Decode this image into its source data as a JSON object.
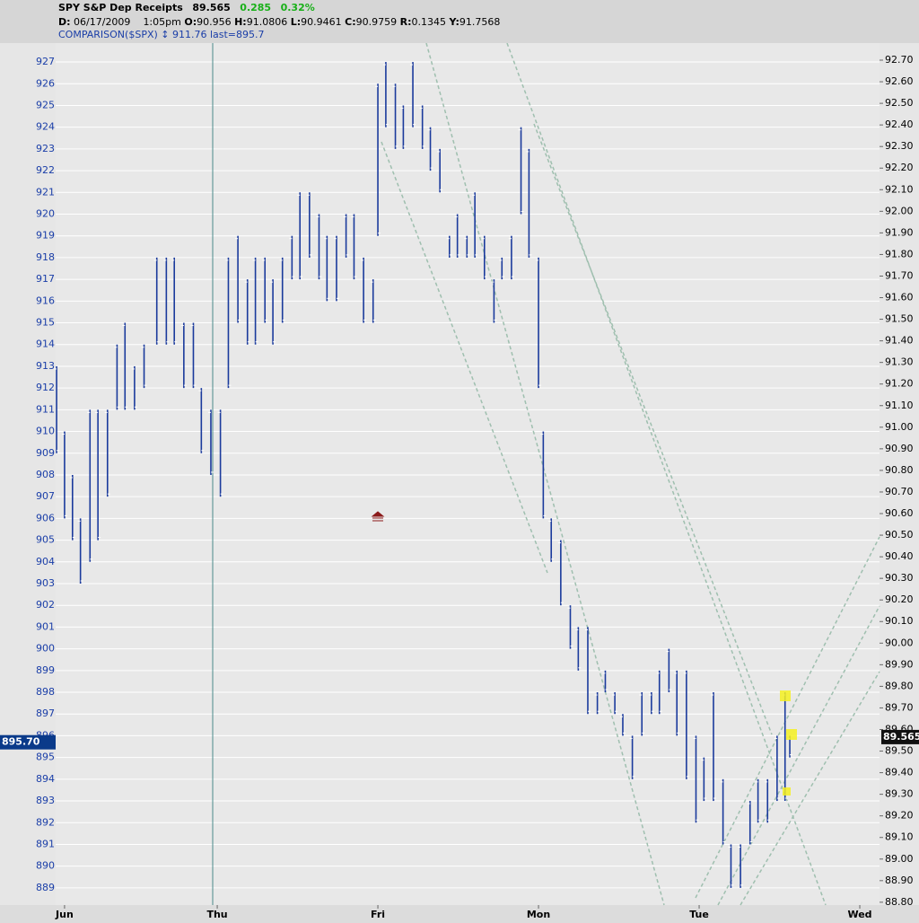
{
  "header": {
    "symbol": "SPY S&P Dep Receipts",
    "last": "89.565",
    "change": "0.285",
    "change_pct": "0.32%",
    "date_label": "D:",
    "date": "06/17/2009",
    "time": "1:05pm",
    "open_label": "O:",
    "open": "90.956",
    "high_label": "H:",
    "high": "91.0806",
    "low_label": "L:",
    "low": "90.9461",
    "close_label": "C:",
    "close": "90.9759",
    "range_label": "R:",
    "range": "0.1345",
    "y_label": "Y:",
    "y": "91.7568",
    "comparison": "COMPARISON($SPX) ↕ 911.76 last=895.7"
  },
  "chart_data": {
    "type": "hilo",
    "color": "#1a3a9c",
    "grid": true,
    "x": [
      -0.05,
      0,
      0.05,
      0.1,
      0.16,
      0.21,
      0.27,
      0.33,
      0.38,
      0.44,
      0.5,
      0.58,
      0.64,
      0.69,
      0.75,
      0.81,
      0.86,
      0.92,
      0.98,
      1.03,
      1.09,
      1.15,
      1.2,
      1.26,
      1.31,
      1.37,
      1.43,
      1.48,
      1.54,
      1.6,
      1.65,
      1.71,
      1.77,
      1.82,
      1.88,
      1.94,
      1.97,
      2.02,
      2.08,
      2.13,
      2.19,
      2.25,
      2.3,
      2.36,
      2.42,
      2.47,
      2.53,
      2.58,
      2.64,
      2.7,
      2.75,
      2.81,
      2.87,
      2.92,
      2.98,
      3.01,
      3.06,
      3.12,
      3.18,
      3.23,
      3.29,
      3.35,
      3.4,
      3.46,
      3.51,
      3.57,
      3.63,
      3.69,
      3.74,
      3.8,
      3.85,
      3.91,
      3.97,
      4.02,
      4.08,
      4.14,
      4.19,
      4.25,
      4.31,
      4.36,
      4.42,
      4.48,
      4.53,
      4.56
    ],
    "high": [
      913,
      910,
      908,
      906,
      911,
      911,
      911,
      914,
      915,
      913,
      914,
      918,
      918,
      918,
      915,
      915,
      912,
      911,
      911,
      918,
      919,
      917,
      918,
      918,
      917,
      918,
      919,
      921,
      921,
      920,
      919,
      919,
      920,
      920,
      918,
      917,
      926,
      927,
      926,
      925,
      927,
      925,
      924,
      923,
      919,
      920,
      919,
      921,
      919,
      917,
      918,
      919,
      924,
      923,
      918,
      910,
      906,
      905,
      902,
      901,
      901,
      898,
      899,
      898,
      897,
      896,
      898,
      898,
      899,
      900,
      899,
      899,
      896,
      895,
      898,
      894,
      891,
      891,
      893,
      894,
      894,
      896,
      898,
      896
    ],
    "low": [
      909,
      906,
      905,
      903,
      904,
      905,
      907,
      911,
      911,
      911,
      912,
      914,
      914,
      914,
      912,
      912,
      909,
      908,
      907,
      912,
      915,
      914,
      914,
      915,
      914,
      915,
      917,
      917,
      918,
      917,
      916,
      916,
      918,
      917,
      915,
      915,
      919,
      924,
      923,
      923,
      924,
      923,
      922,
      921,
      918,
      918,
      918,
      918,
      917,
      915,
      917,
      917,
      920,
      918,
      912,
      906,
      904,
      902,
      900,
      899,
      897,
      897,
      898,
      897,
      896,
      894,
      896,
      897,
      897,
      898,
      896,
      894,
      892,
      893,
      893,
      891,
      889,
      889,
      891,
      892,
      892,
      893,
      893,
      895
    ],
    "ylim": [
      888.21,
      927.87
    ],
    "yticks": [
      889,
      890,
      891,
      892,
      893,
      894,
      895,
      896,
      897,
      898,
      899,
      900,
      901,
      902,
      903,
      904,
      905,
      906,
      907,
      908,
      909,
      910,
      911,
      912,
      913,
      914,
      915,
      916,
      917,
      918,
      919,
      920,
      921,
      922,
      923,
      924,
      925,
      926,
      927
    ],
    "y2lim": [
      88.787,
      92.779
    ],
    "y2ticks": [
      {
        "value": 88.8,
        "label": "88.80"
      },
      {
        "value": 88.9,
        "label": "88.90"
      },
      {
        "value": 89.0,
        "label": "89.00"
      },
      {
        "value": 89.1,
        "label": "89.10"
      },
      {
        "value": 89.2,
        "label": "89.20"
      },
      {
        "value": 89.3,
        "label": "89.30"
      },
      {
        "value": 89.4,
        "label": "89.40"
      },
      {
        "value": 89.5,
        "label": "89.50"
      },
      {
        "value": 89.6,
        "label": "89.60"
      },
      {
        "value": 89.7,
        "label": "89.70"
      },
      {
        "value": 89.8,
        "label": "89.80"
      },
      {
        "value": 89.9,
        "label": "89.90"
      },
      {
        "value": 90.0,
        "label": "90.00"
      },
      {
        "value": 90.1,
        "label": "90.10"
      },
      {
        "value": 90.2,
        "label": "90.20"
      },
      {
        "value": 90.3,
        "label": "90.30"
      },
      {
        "value": 90.4,
        "label": "90.40"
      },
      {
        "value": 90.5,
        "label": "90.50"
      },
      {
        "value": 90.6,
        "label": "90.60"
      },
      {
        "value": 90.7,
        "label": "90.70"
      },
      {
        "value": 90.8,
        "label": "90.80"
      },
      {
        "value": 90.9,
        "label": "90.90"
      },
      {
        "value": 91.0,
        "label": "91.00"
      },
      {
        "value": 91.1,
        "label": "91.10"
      },
      {
        "value": 91.2,
        "label": "91.20"
      },
      {
        "value": 91.3,
        "label": "91.30"
      },
      {
        "value": 91.4,
        "label": "91.40"
      },
      {
        "value": 91.5,
        "label": "91.50"
      },
      {
        "value": 91.6,
        "label": "91.60"
      },
      {
        "value": 91.7,
        "label": "91.70"
      },
      {
        "value": 91.8,
        "label": "91.80"
      },
      {
        "value": 91.9,
        "label": "91.90"
      },
      {
        "value": 92.0,
        "label": "92.00"
      },
      {
        "value": 92.1,
        "label": "92.10"
      },
      {
        "value": 92.2,
        "label": "92.20"
      },
      {
        "value": 92.3,
        "label": "92.30"
      },
      {
        "value": 92.4,
        "label": "92.40"
      },
      {
        "value": 92.5,
        "label": "92.50"
      },
      {
        "value": 92.6,
        "label": "92.60"
      },
      {
        "value": 92.7,
        "label": "92.70"
      }
    ],
    "xlim": [
      -0.056,
      5.124
    ],
    "xticks": [
      {
        "value": 0,
        "label": "Jun"
      },
      {
        "value": 0.96,
        "label": "Thu"
      },
      {
        "value": 1.97,
        "label": "Fri"
      },
      {
        "value": 2.98,
        "label": "Mon"
      },
      {
        "value": 3.99,
        "label": "Tue"
      },
      {
        "value": 5.0,
        "label": "Wed"
      }
    ],
    "left_last": {
      "value": 895.7,
      "label": "895.70"
    },
    "right_last": {
      "value": 89.565,
      "label": "89.565"
    }
  }
}
